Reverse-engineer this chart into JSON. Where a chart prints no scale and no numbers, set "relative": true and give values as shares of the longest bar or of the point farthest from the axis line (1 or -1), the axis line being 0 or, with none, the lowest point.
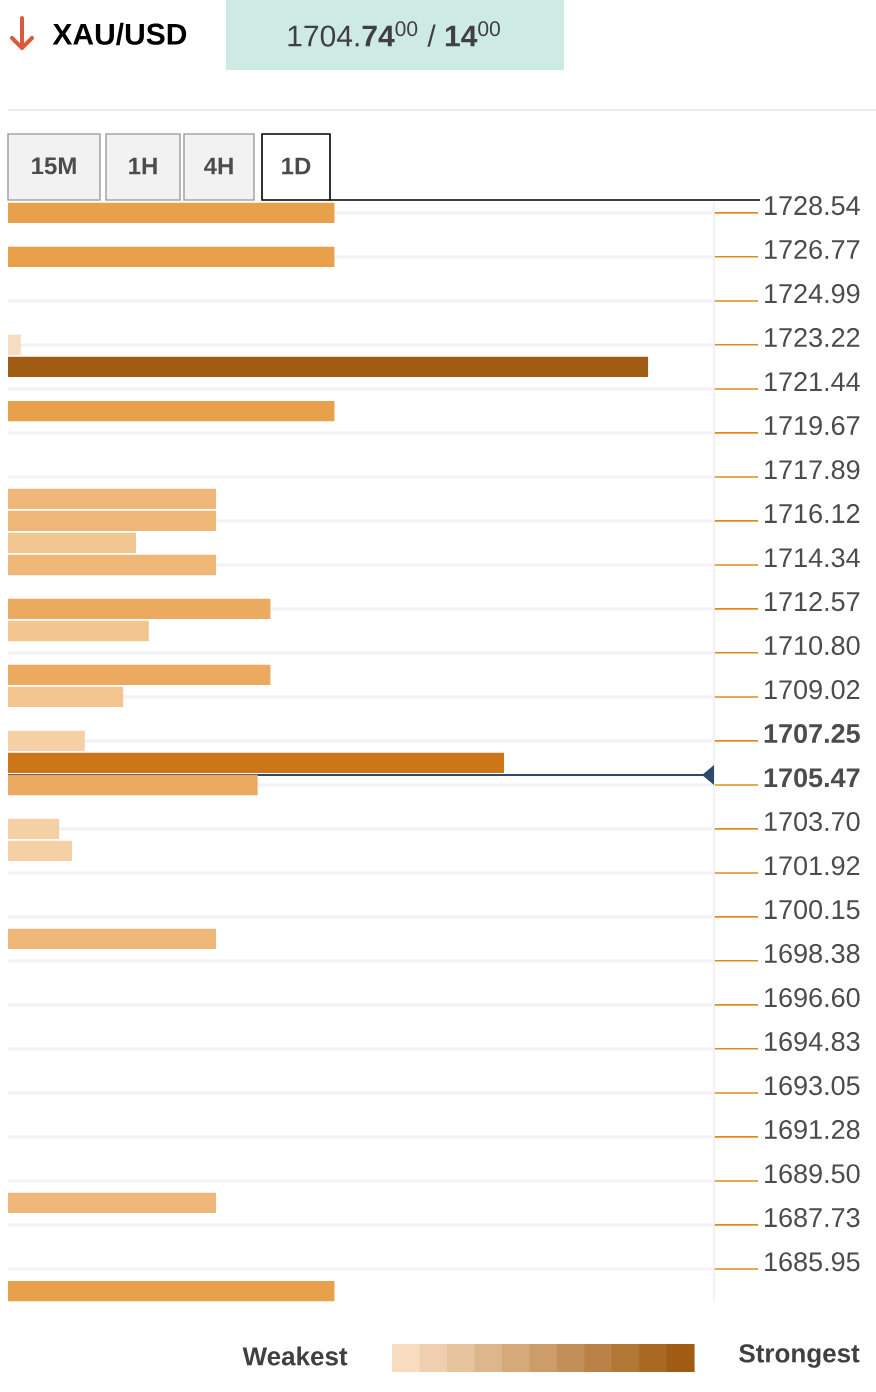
{
  "chart_data": {
    "type": "bar",
    "orientation": "horizontal",
    "relative": true,
    "title": "XAU/USD",
    "subtitle": "1704.**74**$^{00}$ / **14**$^{00}$",
    "x": [
      1728.54,
      1726.77,
      1723.22,
      1722.33,
      1720.55,
      1717.01,
      1716.12,
      1715.23,
      1714.34,
      1712.57,
      1711.68,
      1709.91,
      1709.02,
      1707.25,
      1706.36,
      1705.47,
      1703.7,
      1702.81,
      1699.26,
      1688.62,
      1685.06
    ],
    "values": [
      0.51,
      0.51,
      0.02,
      1.0,
      0.51,
      0.325,
      0.325,
      0.2,
      0.325,
      0.41,
      0.22,
      0.41,
      0.18,
      0.12,
      0.775,
      0.39,
      0.08,
      0.1,
      0.325,
      0.325,
      0.51
    ],
    "colors": [
      "#e9a04b",
      "#e9a04b",
      "#f8dcc0",
      "#a05c12",
      "#e9a04b",
      "#eeb677",
      "#eeb677",
      "#f2c690",
      "#eeb677",
      "#ecaa60",
      "#f3c690",
      "#ecaa60",
      "#f3c690",
      "#f5d0a5",
      "#cc7618",
      "#ecaa60",
      "#f5d0a5",
      "#f5d0a5",
      "#eeb677",
      "#eeb677",
      "#e9a04b"
    ],
    "ylim": [
      1684.62,
      1728.98
    ],
    "yticks": [
      1728.54,
      1726.77,
      1724.99,
      1723.22,
      1721.44,
      1719.67,
      1717.89,
      1716.12,
      1714.34,
      1712.57,
      {
        "value": 1710.8,
        "label": "1710.80"
      },
      1709.02,
      {
        "value": 1707.25,
        "label": "**1707.25**"
      },
      {
        "value": 1705.47,
        "label": "**1705.47**"
      },
      {
        "value": 1703.7,
        "label": "1703.70"
      },
      1701.92,
      1700.15,
      1698.38,
      {
        "value": 1696.6,
        "label": "1696.60"
      },
      1694.83,
      1693.05,
      1691.28,
      {
        "value": 1689.5,
        "label": "1689.50"
      },
      1687.73,
      1685.95
    ],
    "grid": "y",
    "ref_lines": [
      {
        "axis": "y",
        "value": 1705.87,
        "color": "#2c4a6e"
      }
    ],
    "annotations": [
      "15M",
      "1H",
      "4H",
      "1D",
      "Weakest",
      "Strongest"
    ]
  }
}
